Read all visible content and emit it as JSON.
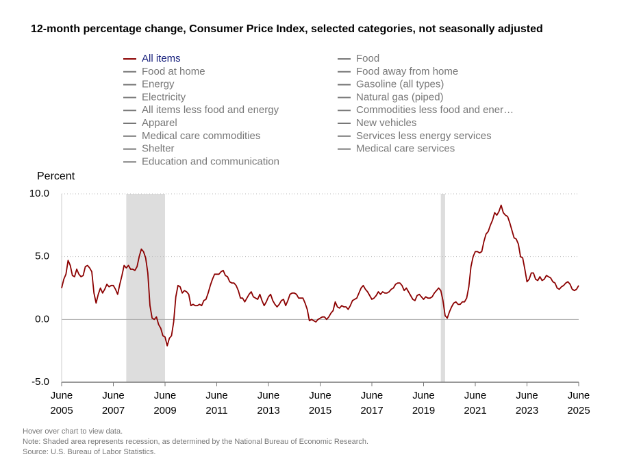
{
  "chart_data": {
    "type": "line",
    "title": "12-month percentage change, Consumer Price Index, selected categories, not seasonally adjusted",
    "ylabel": "Percent",
    "notes": [
      "Hover over chart to view data.",
      "Note: Shaded area represents recession, as determined by the National Bureau of Economic Research.",
      "Source: U.S. Bureau of Labor Statistics."
    ],
    "ylim": [
      -5,
      10
    ],
    "yticks": [
      {
        "value": -5,
        "label": "-5.0"
      },
      {
        "value": 0,
        "label": "0.0"
      },
      {
        "value": 5,
        "label": "5.0"
      },
      {
        "value": 10,
        "label": "10.0"
      }
    ],
    "xlim": [
      "2005-06",
      "2025-06"
    ],
    "xticks": [
      {
        "value": "2005-06",
        "label": [
          "June",
          "2005"
        ]
      },
      {
        "value": "2007-06",
        "label": [
          "June",
          "2007"
        ]
      },
      {
        "value": "2009-06",
        "label": [
          "June",
          "2009"
        ]
      },
      {
        "value": "2011-06",
        "label": [
          "June",
          "2011"
        ]
      },
      {
        "value": "2013-06",
        "label": [
          "June",
          "2013"
        ]
      },
      {
        "value": "2015-06",
        "label": [
          "June",
          "2015"
        ]
      },
      {
        "value": "2017-06",
        "label": [
          "June",
          "2017"
        ]
      },
      {
        "value": "2019-06",
        "label": [
          "June",
          "2019"
        ]
      },
      {
        "value": "2021-06",
        "label": [
          "June",
          "2021"
        ]
      },
      {
        "value": "2023-06",
        "label": [
          "June",
          "2023"
        ]
      },
      {
        "value": "2025-06",
        "label": [
          "June",
          "2025"
        ]
      }
    ],
    "grid": true,
    "recession_color": "#dddddd",
    "recessions": [
      [
        "2007-12",
        "2009-06"
      ],
      [
        "2020-02",
        "2020-04"
      ]
    ],
    "x": [
      "2005-06",
      "2005-07",
      "2005-08",
      "2005-09",
      "2005-10",
      "2005-11",
      "2005-12",
      "2006-01",
      "2006-02",
      "2006-03",
      "2006-04",
      "2006-05",
      "2006-06",
      "2006-07",
      "2006-08",
      "2006-09",
      "2006-10",
      "2006-11",
      "2006-12",
      "2007-01",
      "2007-02",
      "2007-03",
      "2007-04",
      "2007-05",
      "2007-06",
      "2007-07",
      "2007-08",
      "2007-09",
      "2007-10",
      "2007-11",
      "2007-12",
      "2008-01",
      "2008-02",
      "2008-03",
      "2008-04",
      "2008-05",
      "2008-06",
      "2008-07",
      "2008-08",
      "2008-09",
      "2008-10",
      "2008-11",
      "2008-12",
      "2009-01",
      "2009-02",
      "2009-03",
      "2009-04",
      "2009-05",
      "2009-06",
      "2009-07",
      "2009-08",
      "2009-09",
      "2009-10",
      "2009-11",
      "2009-12",
      "2010-01",
      "2010-02",
      "2010-03",
      "2010-04",
      "2010-05",
      "2010-06",
      "2010-07",
      "2010-08",
      "2010-09",
      "2010-10",
      "2010-11",
      "2010-12",
      "2011-01",
      "2011-02",
      "2011-03",
      "2011-04",
      "2011-05",
      "2011-06",
      "2011-07",
      "2011-08",
      "2011-09",
      "2011-10",
      "2011-11",
      "2011-12",
      "2012-01",
      "2012-02",
      "2012-03",
      "2012-04",
      "2012-05",
      "2012-06",
      "2012-07",
      "2012-08",
      "2012-09",
      "2012-10",
      "2012-11",
      "2012-12",
      "2013-01",
      "2013-02",
      "2013-03",
      "2013-04",
      "2013-05",
      "2013-06",
      "2013-07",
      "2013-08",
      "2013-09",
      "2013-10",
      "2013-11",
      "2013-12",
      "2014-01",
      "2014-02",
      "2014-03",
      "2014-04",
      "2014-05",
      "2014-06",
      "2014-07",
      "2014-08",
      "2014-09",
      "2014-10",
      "2014-11",
      "2014-12",
      "2015-01",
      "2015-02",
      "2015-03",
      "2015-04",
      "2015-05",
      "2015-06",
      "2015-07",
      "2015-08",
      "2015-09",
      "2015-10",
      "2015-11",
      "2015-12",
      "2016-01",
      "2016-02",
      "2016-03",
      "2016-04",
      "2016-05",
      "2016-06",
      "2016-07",
      "2016-08",
      "2016-09",
      "2016-10",
      "2016-11",
      "2016-12",
      "2017-01",
      "2017-02",
      "2017-03",
      "2017-04",
      "2017-05",
      "2017-06",
      "2017-07",
      "2017-08",
      "2017-09",
      "2017-10",
      "2017-11",
      "2017-12",
      "2018-01",
      "2018-02",
      "2018-03",
      "2018-04",
      "2018-05",
      "2018-06",
      "2018-07",
      "2018-08",
      "2018-09",
      "2018-10",
      "2018-11",
      "2018-12",
      "2019-01",
      "2019-02",
      "2019-03",
      "2019-04",
      "2019-05",
      "2019-06",
      "2019-07",
      "2019-08",
      "2019-09",
      "2019-10",
      "2019-11",
      "2019-12",
      "2020-01",
      "2020-02",
      "2020-03",
      "2020-04",
      "2020-05",
      "2020-06",
      "2020-07",
      "2020-08",
      "2020-09",
      "2020-10",
      "2020-11",
      "2020-12",
      "2021-01",
      "2021-02",
      "2021-03",
      "2021-04",
      "2021-05",
      "2021-06",
      "2021-07",
      "2021-08",
      "2021-09",
      "2021-10",
      "2021-11",
      "2021-12",
      "2022-01",
      "2022-02",
      "2022-03",
      "2022-04",
      "2022-05",
      "2022-06",
      "2022-07",
      "2022-08",
      "2022-09",
      "2022-10",
      "2022-11",
      "2022-12",
      "2023-01",
      "2023-02",
      "2023-03",
      "2023-04",
      "2023-05",
      "2023-06",
      "2023-07",
      "2023-08",
      "2023-09",
      "2023-10",
      "2023-11",
      "2023-12",
      "2024-01",
      "2024-02",
      "2024-03",
      "2024-04",
      "2024-05",
      "2024-06",
      "2024-07",
      "2024-08",
      "2024-09",
      "2024-10",
      "2024-11",
      "2024-12",
      "2025-01",
      "2025-02",
      "2025-03",
      "2025-04",
      "2025-05",
      "2025-06"
    ],
    "series": [
      {
        "name": "All items",
        "color": "#8b0000",
        "label_color": "#1a237e",
        "values": [
          2.5,
          3.2,
          3.6,
          4.7,
          4.3,
          3.5,
          3.4,
          4.0,
          3.6,
          3.4,
          3.5,
          4.2,
          4.3,
          4.1,
          3.8,
          2.1,
          1.3,
          2.0,
          2.5,
          2.1,
          2.4,
          2.8,
          2.6,
          2.7,
          2.7,
          2.4,
          2.0,
          2.8,
          3.5,
          4.3,
          4.1,
          4.3,
          4.0,
          4.0,
          3.9,
          4.2,
          5.0,
          5.6,
          5.4,
          4.9,
          3.7,
          1.1,
          0.1,
          0.0,
          0.2,
          -0.4,
          -0.7,
          -1.3,
          -1.4,
          -2.1,
          -1.5,
          -1.3,
          -0.2,
          1.8,
          2.7,
          2.6,
          2.1,
          2.3,
          2.2,
          2.0,
          1.1,
          1.2,
          1.1,
          1.1,
          1.2,
          1.1,
          1.5,
          1.6,
          2.1,
          2.7,
          3.2,
          3.6,
          3.6,
          3.6,
          3.8,
          3.9,
          3.5,
          3.4,
          3.0,
          2.9,
          2.9,
          2.7,
          2.3,
          1.7,
          1.7,
          1.4,
          1.7,
          2.0,
          2.2,
          1.8,
          1.7,
          1.6,
          2.0,
          1.5,
          1.1,
          1.4,
          1.8,
          2.0,
          1.5,
          1.2,
          1.0,
          1.2,
          1.5,
          1.6,
          1.1,
          1.5,
          2.0,
          2.1,
          2.1,
          2.0,
          1.7,
          1.7,
          1.7,
          1.3,
          0.8,
          -0.1,
          0.0,
          -0.1,
          -0.2,
          0.0,
          0.1,
          0.2,
          0.2,
          0.0,
          0.2,
          0.5,
          0.7,
          1.4,
          1.0,
          0.9,
          1.1,
          1.0,
          1.0,
          0.8,
          1.1,
          1.5,
          1.6,
          1.7,
          2.1,
          2.5,
          2.7,
          2.4,
          2.2,
          1.9,
          1.6,
          1.7,
          1.9,
          2.2,
          2.0,
          2.2,
          2.1,
          2.1,
          2.2,
          2.4,
          2.5,
          2.8,
          2.9,
          2.9,
          2.7,
          2.3,
          2.5,
          2.2,
          1.9,
          1.6,
          1.5,
          1.9,
          2.0,
          1.8,
          1.6,
          1.8,
          1.7,
          1.7,
          1.8,
          2.1,
          2.3,
          2.5,
          2.3,
          1.5,
          0.3,
          0.1,
          0.6,
          1.0,
          1.3,
          1.4,
          1.2,
          1.2,
          1.4,
          1.4,
          1.7,
          2.6,
          4.2,
          5.0,
          5.4,
          5.4,
          5.3,
          5.4,
          6.2,
          6.8,
          7.0,
          7.5,
          7.9,
          8.5,
          8.3,
          8.6,
          9.1,
          8.5,
          8.3,
          8.2,
          7.7,
          7.1,
          6.5,
          6.4,
          6.0,
          5.0,
          4.9,
          4.0,
          3.0,
          3.2,
          3.7,
          3.7,
          3.2,
          3.1,
          3.4,
          3.1,
          3.2,
          3.5,
          3.4,
          3.3,
          3.0,
          2.9,
          2.5,
          2.4,
          2.6,
          2.7,
          2.9,
          3.0,
          2.8,
          2.4,
          2.3,
          2.4,
          2.7
        ]
      }
    ],
    "hidden_color": "#777777",
    "hidden_series": [
      "Food",
      "Food at home",
      "Food away from home",
      "Energy",
      "Gasoline (all types)",
      "Electricity",
      "Natural gas (piped)",
      "All items less food and energy",
      "Commodities less food and ener…",
      "Apparel",
      "New vehicles",
      "Medical care commodities",
      "Services less energy services",
      "Shelter",
      "Medical care services",
      "Education and communication"
    ]
  }
}
